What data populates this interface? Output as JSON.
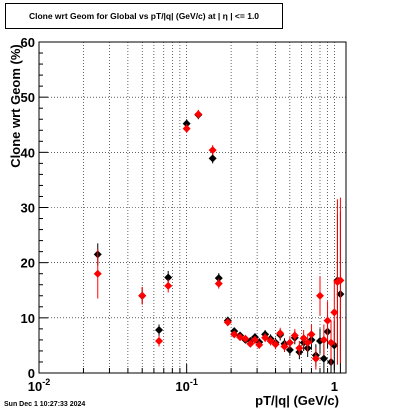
{
  "header": {
    "title": "Clone wrt Geom for Global vs pT/|q| (GeV/c) at |  η  | <= 1.0"
  },
  "footer": {
    "timestamp": "Sun Dec  1 10:27:33 2024"
  },
  "chart_data": {
    "type": "scatter",
    "title": "Clone wrt Geom for Global vs pT/|q| (GeV/c) at |  η  | <= 1.0",
    "xlabel": "pT/|q| (GeV/c)",
    "ylabel": "Clone wrt Geom (%)",
    "xscale": "log",
    "xlim": [
      0.01,
      1.2
    ],
    "ylim": [
      0,
      60
    ],
    "grid": true,
    "x_tick_labels": [
      "10^-2",
      "10^-1",
      "1"
    ],
    "y_tick_labels": [
      "0",
      "10",
      "20",
      "30",
      "40",
      "50",
      "60"
    ],
    "colors": {
      "series1": "#000000",
      "series2": "#ff0000",
      "frame": "#000000",
      "grid": "#000000"
    },
    "series": [
      {
        "color": "#000000",
        "marker": "diamond",
        "x": [
          0.025,
          0.05,
          0.065,
          0.075,
          0.1,
          0.12,
          0.15,
          0.165,
          0.19,
          0.21,
          0.23,
          0.25,
          0.27,
          0.29,
          0.31,
          0.34,
          0.37,
          0.4,
          0.43,
          0.46,
          0.5,
          0.54,
          0.58,
          0.62,
          0.66,
          0.7,
          0.75,
          0.8,
          0.85,
          0.9,
          0.95,
          1.0,
          1.05,
          1.1
        ],
        "y": [
          21.5,
          14.0,
          7.8,
          17.3,
          45.2,
          46.8,
          38.9,
          17.2,
          9.5,
          7.6,
          6.8,
          6.0,
          5.8,
          6.5,
          5.6,
          7.0,
          6.2,
          5.5,
          6.9,
          5.3,
          4.2,
          6.4,
          3.8,
          5.5,
          4.5,
          6.0,
          3.2,
          5.8,
          2.6,
          7.5,
          2.0,
          5.0,
          16.8,
          14.3
        ],
        "yerr": [
          2.0,
          1.5,
          1.0,
          1.2,
          0.8,
          0.8,
          0.9,
          0.9,
          0.7,
          0.6,
          0.6,
          0.6,
          0.6,
          0.7,
          0.7,
          0.8,
          0.8,
          0.9,
          1.0,
          1.0,
          1.1,
          1.2,
          1.3,
          1.5,
          1.6,
          1.8,
          2.0,
          2.3,
          2.6,
          3.0,
          3.5,
          4.5,
          12.0,
          15.0
        ]
      },
      {
        "color": "#ff0000",
        "marker": "diamond",
        "x": [
          0.025,
          0.05,
          0.065,
          0.075,
          0.1,
          0.12,
          0.15,
          0.165,
          0.19,
          0.21,
          0.23,
          0.25,
          0.27,
          0.29,
          0.31,
          0.34,
          0.37,
          0.4,
          0.43,
          0.46,
          0.5,
          0.54,
          0.58,
          0.62,
          0.66,
          0.7,
          0.75,
          0.8,
          0.85,
          0.9,
          0.95,
          1.0,
          1.05,
          1.1
        ],
        "y": [
          18.0,
          14.0,
          5.8,
          15.8,
          44.3,
          46.9,
          40.4,
          16.2,
          9.2,
          7.0,
          6.5,
          6.2,
          5.3,
          6.0,
          5.1,
          6.4,
          5.8,
          5.2,
          7.2,
          4.8,
          5.5,
          6.8,
          4.5,
          6.3,
          5.5,
          7.0,
          2.6,
          14.0,
          6.0,
          9.5,
          5.5,
          11.0,
          16.5,
          16.8
        ],
        "yerr": [
          4.5,
          1.6,
          1.0,
          1.2,
          0.8,
          0.8,
          0.9,
          0.9,
          0.7,
          0.6,
          0.6,
          0.6,
          0.6,
          0.7,
          0.7,
          0.8,
          0.8,
          0.9,
          1.0,
          1.0,
          1.1,
          1.2,
          1.3,
          1.5,
          1.6,
          1.8,
          2.0,
          3.5,
          2.8,
          3.5,
          4.0,
          6.0,
          15.0,
          15.0
        ]
      }
    ]
  }
}
